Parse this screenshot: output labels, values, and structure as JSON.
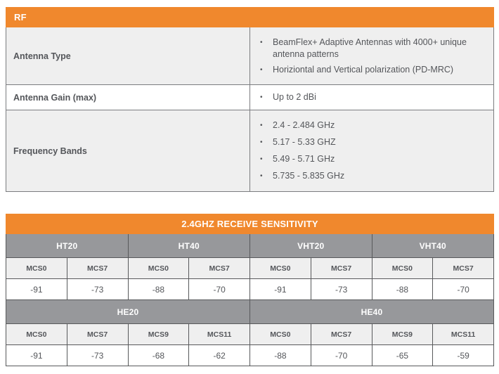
{
  "colors": {
    "accent_orange": "#F0882D",
    "band_gray": "#97989B",
    "row_shade_gray": "#EFEFEF",
    "text_dark": "#54565A"
  },
  "rf_table": {
    "header": "RF",
    "rows": [
      {
        "label": "Antenna Type",
        "bullets": [
          "BeamFlex+ Adaptive Antennas with 4000+ unique antenna patterns",
          "Horiziontal and Vertical polarization (PD-MRC)"
        ],
        "shaded": true
      },
      {
        "label": "Antenna Gain (max)",
        "bullets": [
          "Up to 2 dBi"
        ],
        "shaded": false
      },
      {
        "label": "Frequency Bands",
        "bullets": [
          "2.4 - 2.484 GHz",
          "5.17 - 5.33 GHZ",
          "5.49 - 5.71 GHz",
          "5.735 - 5.835 GHz"
        ],
        "shaded": true
      }
    ]
  },
  "sensitivity_table": {
    "header": "2.4GHZ RECEIVE SENSITIVITY",
    "sections": [
      {
        "bands": [
          {
            "name": "HT20",
            "mcs": [
              "MCS0",
              "MCS7"
            ],
            "values": [
              "-91",
              "-73"
            ]
          },
          {
            "name": "HT40",
            "mcs": [
              "MCS0",
              "MCS7"
            ],
            "values": [
              "-88",
              "-70"
            ]
          },
          {
            "name": "VHT20",
            "mcs": [
              "MCS0",
              "MCS7"
            ],
            "values": [
              "-91",
              "-73"
            ]
          },
          {
            "name": "VHT40",
            "mcs": [
              "MCS0",
              "MCS7"
            ],
            "values": [
              "-88",
              "-70"
            ]
          }
        ]
      },
      {
        "bands": [
          {
            "name": "HE20",
            "mcs": [
              "MCS0",
              "MCS7",
              "MCS9",
              "MCS11"
            ],
            "values": [
              "-91",
              "-73",
              "-68",
              "-62"
            ]
          },
          {
            "name": "HE40",
            "mcs": [
              "MCS0",
              "MCS7",
              "MCS9",
              "MCS11"
            ],
            "values": [
              "-88",
              "-70",
              "-65",
              "-59"
            ]
          }
        ]
      }
    ]
  }
}
